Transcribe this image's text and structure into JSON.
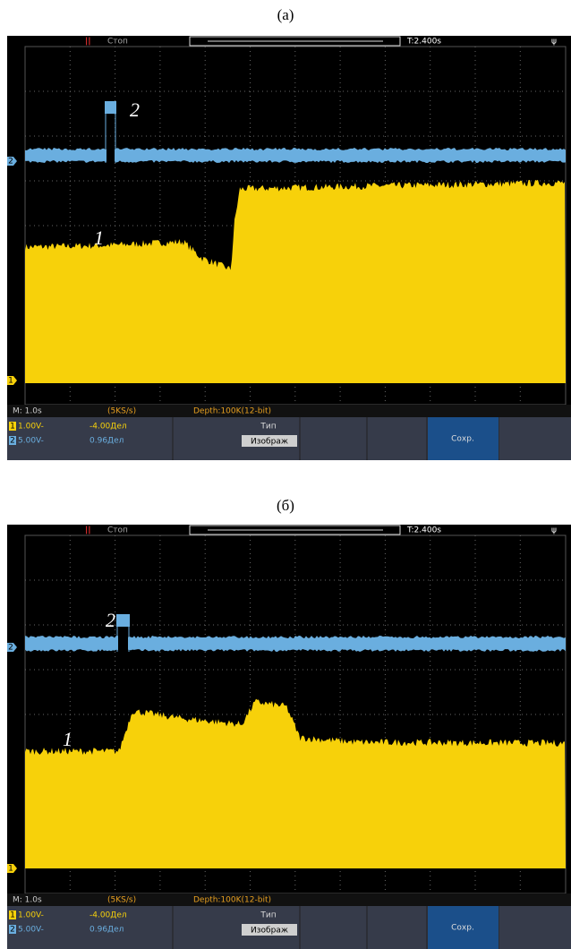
{
  "panels": [
    {
      "label": "(а)",
      "top_bar": {
        "status": "Стоп",
        "trigger_time": "T:2.400s"
      },
      "bottom_bar": {
        "timebase": "M: 1.0s",
        "sample_rate": "(5KS/s)",
        "depth": "Depth:100K(12-bit)",
        "ch1_scale": "1.00V-",
        "ch1_offset": "-4.00Дел",
        "ch2_scale": "5.00V-",
        "ch2_offset": "0.96Дел",
        "type_label": "Тип",
        "type_value": "Изображ",
        "save": "Сохр."
      },
      "channel_markers": [
        "1",
        "2"
      ],
      "curve_labels": [
        "1",
        "2"
      ]
    },
    {
      "label": "(б)",
      "top_bar": {
        "status": "Стоп",
        "trigger_time": "T:2.400s"
      },
      "bottom_bar": {
        "timebase": "M: 1.0s",
        "sample_rate": "(5KS/s)",
        "depth": "Depth:100K(12-bit)",
        "ch1_scale": "1.00V-",
        "ch1_offset": "-4.00Дел",
        "ch2_scale": "5.00V-",
        "ch2_offset": "0.96Дел",
        "type_label": "Тип",
        "type_value": "Изображ",
        "save": "Сохр."
      },
      "channel_markers": [
        "1",
        "2"
      ],
      "curve_labels": [
        "1",
        "2"
      ]
    }
  ]
}
